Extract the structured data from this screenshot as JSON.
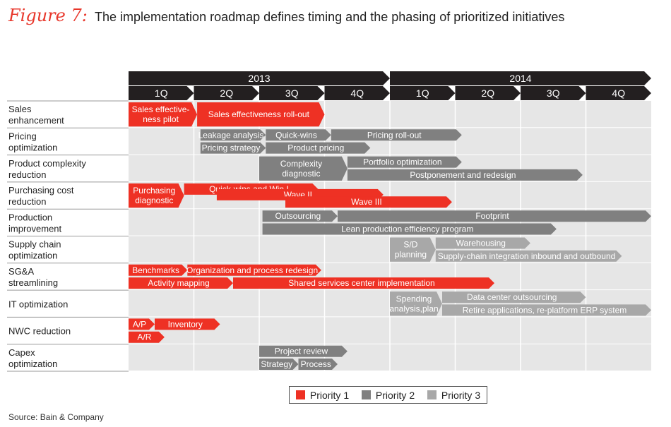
{
  "figure": {
    "label": "Figure 7:",
    "title": "The implementation roadmap defines timing and the phasing of prioritized initiatives",
    "source": "Source: Bain & Company"
  },
  "colors": {
    "priority1": "#ee3124",
    "priority2": "#808080",
    "priority3": "#a8a8a8",
    "header": "#231f20",
    "row_bg": "#e6e6e6"
  },
  "chart_data": {
    "type": "gantt",
    "years": [
      {
        "label": "2013",
        "start": 0,
        "end": 4
      },
      {
        "label": "2014",
        "start": 4,
        "end": 8
      }
    ],
    "quarters": [
      "1Q",
      "2Q",
      "3Q",
      "4Q",
      "1Q",
      "2Q",
      "3Q",
      "4Q"
    ],
    "rows": [
      {
        "label": [
          "Sales",
          "enhancement"
        ]
      },
      {
        "label": [
          "Pricing",
          "optimization"
        ]
      },
      {
        "label": [
          "Product complexity",
          "reduction"
        ]
      },
      {
        "label": [
          "Purchasing cost",
          "reduction"
        ]
      },
      {
        "label": [
          "Production",
          "improvement"
        ]
      },
      {
        "label": [
          "Supply chain",
          "optimization"
        ]
      },
      {
        "label": [
          "SG&A",
          "streamlining"
        ]
      },
      {
        "label": [
          "IT optimization"
        ]
      },
      {
        "label": [
          "NWC reduction"
        ]
      },
      {
        "label": [
          "Capex",
          "optimization"
        ]
      }
    ],
    "bars": [
      {
        "row": 0,
        "lane": "full",
        "start": 0,
        "end": 1.05,
        "priority": 1,
        "text": [
          "Sales effective-",
          "ness pilot"
        ]
      },
      {
        "row": 0,
        "lane": "full",
        "start": 1.05,
        "end": 3.0,
        "priority": 1,
        "text": [
          "Sales effectiveness roll-out"
        ]
      },
      {
        "row": 1,
        "lane": "top",
        "start": 1.1,
        "end": 2.1,
        "priority": 2,
        "text": [
          "Leakage analysis"
        ]
      },
      {
        "row": 1,
        "lane": "top",
        "start": 2.1,
        "end": 3.1,
        "priority": 2,
        "text": [
          "Quick-wins"
        ]
      },
      {
        "row": 1,
        "lane": "top",
        "start": 3.1,
        "end": 5.1,
        "priority": 2,
        "text": [
          "Pricing roll-out"
        ]
      },
      {
        "row": 1,
        "lane": "bot",
        "start": 1.1,
        "end": 2.1,
        "priority": 2,
        "text": [
          "Pricing strategy"
        ]
      },
      {
        "row": 1,
        "lane": "bot",
        "start": 2.1,
        "end": 3.7,
        "priority": 2,
        "text": [
          "Product pricing"
        ]
      },
      {
        "row": 2,
        "lane": "full",
        "start": 2.0,
        "end": 3.35,
        "priority": 2,
        "text": [
          "Complexity",
          "diagnostic"
        ]
      },
      {
        "row": 2,
        "lane": "top",
        "start": 3.35,
        "end": 5.1,
        "priority": 2,
        "text": [
          "Portfolio optimization"
        ]
      },
      {
        "row": 2,
        "lane": "bot",
        "start": 3.35,
        "end": 6.95,
        "priority": 2,
        "text": [
          "Postponement and redesign"
        ]
      },
      {
        "row": 3,
        "lane": "full",
        "start": 0,
        "end": 0.85,
        "priority": 1,
        "text": [
          "Purchasing",
          "diagnostic"
        ]
      },
      {
        "row": 3,
        "lane": "top",
        "start": 0.85,
        "end": 2.9,
        "priority": 1,
        "text": [
          "Quick-wins and Win I"
        ]
      },
      {
        "row": 3,
        "lane": "mid",
        "start": 1.35,
        "end": 3.9,
        "priority": 1,
        "text": [
          "Wave II"
        ]
      },
      {
        "row": 3,
        "lane": "bot",
        "start": 2.4,
        "end": 4.95,
        "priority": 1,
        "text": [
          "Wave III"
        ]
      },
      {
        "row": 4,
        "lane": "top",
        "start": 2.05,
        "end": 3.2,
        "priority": 2,
        "text": [
          "Outsourcing"
        ]
      },
      {
        "row": 4,
        "lane": "top",
        "start": 3.2,
        "end": 8.0,
        "priority": 2,
        "text": [
          "Footprint"
        ]
      },
      {
        "row": 4,
        "lane": "bot",
        "start": 2.05,
        "end": 6.55,
        "priority": 2,
        "text": [
          "Lean production efficiency program"
        ]
      },
      {
        "row": 5,
        "lane": "full",
        "start": 4.0,
        "end": 4.7,
        "priority": 3,
        "text": [
          "S/D",
          "planning"
        ]
      },
      {
        "row": 5,
        "lane": "top",
        "start": 4.7,
        "end": 6.15,
        "priority": 3,
        "text": [
          "Warehousing"
        ]
      },
      {
        "row": 5,
        "lane": "bot",
        "start": 4.7,
        "end": 7.55,
        "priority": 3,
        "text": [
          "Supply-chain integration inbound and outbound"
        ]
      },
      {
        "row": 6,
        "lane": "top",
        "start": 0,
        "end": 0.9,
        "priority": 1,
        "text": [
          "Benchmarks"
        ]
      },
      {
        "row": 6,
        "lane": "top",
        "start": 0.9,
        "end": 2.95,
        "priority": 1,
        "text": [
          "Organization and process redesign"
        ]
      },
      {
        "row": 6,
        "lane": "bot",
        "start": 0,
        "end": 1.6,
        "priority": 1,
        "text": [
          "Activity mapping"
        ]
      },
      {
        "row": 6,
        "lane": "bot",
        "start": 1.6,
        "end": 5.6,
        "priority": 1,
        "text": [
          "Shared services center implementation"
        ]
      },
      {
        "row": 7,
        "lane": "full",
        "start": 4.0,
        "end": 4.8,
        "priority": 3,
        "text": [
          "Spending",
          "analysis,plan"
        ]
      },
      {
        "row": 7,
        "lane": "top",
        "start": 4.8,
        "end": 7.0,
        "priority": 3,
        "text": [
          "Data center outsourcing"
        ]
      },
      {
        "row": 7,
        "lane": "bot",
        "start": 4.8,
        "end": 8.0,
        "priority": 3,
        "text": [
          "Retire applications, re-platform ERP system"
        ]
      },
      {
        "row": 8,
        "lane": "top",
        "start": 0,
        "end": 0.4,
        "priority": 1,
        "text": [
          "A/P"
        ]
      },
      {
        "row": 8,
        "lane": "top",
        "start": 0.4,
        "end": 1.4,
        "priority": 1,
        "text": [
          "Inventory"
        ]
      },
      {
        "row": 8,
        "lane": "bot",
        "start": 0,
        "end": 0.55,
        "priority": 1,
        "text": [
          "A/R"
        ]
      },
      {
        "row": 9,
        "lane": "top",
        "start": 2.0,
        "end": 3.35,
        "priority": 2,
        "text": [
          "Project review"
        ]
      },
      {
        "row": 9,
        "lane": "bot",
        "start": 2.0,
        "end": 2.6,
        "priority": 2,
        "text": [
          "Strategy"
        ]
      },
      {
        "row": 9,
        "lane": "bot",
        "start": 2.6,
        "end": 3.2,
        "priority": 2,
        "text": [
          "Process"
        ]
      }
    ],
    "legend": [
      {
        "label": "Priority 1",
        "priority": 1
      },
      {
        "label": "Priority 2",
        "priority": 2
      },
      {
        "label": "Priority 3",
        "priority": 3
      }
    ]
  }
}
